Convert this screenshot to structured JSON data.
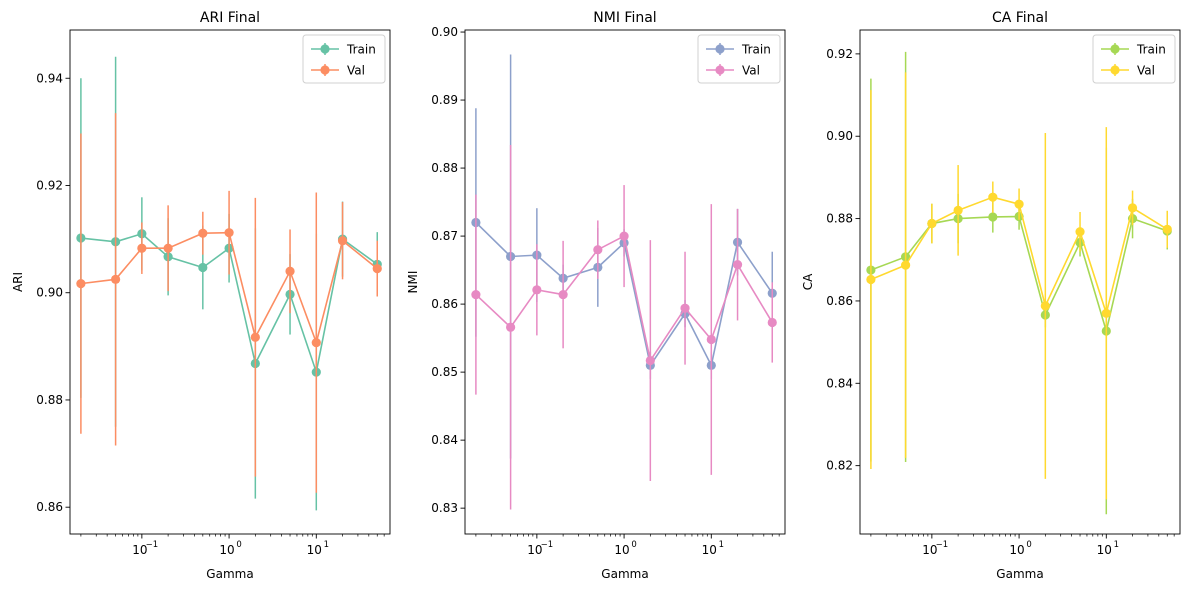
{
  "chart_data": [
    {
      "type": "line",
      "title": "ARI Final",
      "xlabel": "Gamma",
      "ylabel": "ARI",
      "xscale": "log",
      "xlim": [
        0.015,
        70
      ],
      "ylim": [
        0.855,
        0.949
      ],
      "yticks": [
        0.86,
        0.88,
        0.9,
        0.92,
        0.94
      ],
      "ytick_labels": [
        "0.86",
        "0.88",
        "0.90",
        "0.92",
        "0.94"
      ],
      "xticks": [
        0.1,
        1,
        10
      ],
      "xtick_labels": [
        [
          "10",
          "−1"
        ],
        [
          "10",
          "0"
        ],
        [
          "10",
          "1"
        ]
      ],
      "legend_position": "top-right",
      "x": [
        0.02,
        0.05,
        0.1,
        0.2,
        0.5,
        1,
        2,
        5,
        10,
        20,
        50
      ],
      "series": [
        {
          "name": "Train",
          "color": "#66c2a5",
          "values": [
            0.9102,
            0.9095,
            0.911,
            0.9067,
            0.9047,
            0.9083,
            0.8868,
            0.8997,
            0.8852,
            0.91,
            0.9053
          ],
          "errors": [
            0.0298,
            0.0345,
            0.0068,
            0.0072,
            0.0078,
            0.0064,
            0.0252,
            0.0075,
            0.0258,
            0.007,
            0.006
          ]
        },
        {
          "name": "Val",
          "color": "#fc8d62",
          "values": [
            0.9017,
            0.9025,
            0.9083,
            0.9083,
            0.9111,
            0.9112,
            0.8917,
            0.904,
            0.8907,
            0.9097,
            0.9045
          ],
          "errors": [
            0.028,
            0.031,
            0.0048,
            0.008,
            0.004,
            0.0078,
            0.026,
            0.0078,
            0.028,
            0.0072,
            0.0052
          ]
        }
      ]
    },
    {
      "type": "line",
      "title": "NMI Final",
      "xlabel": "Gamma",
      "ylabel": "NMI",
      "xscale": "log",
      "xlim": [
        0.015,
        70
      ],
      "ylim": [
        0.8262,
        0.9003
      ],
      "yticks": [
        0.83,
        0.84,
        0.85,
        0.86,
        0.87,
        0.88,
        0.89,
        0.9
      ],
      "ytick_labels": [
        "0.83",
        "0.84",
        "0.85",
        "0.86",
        "0.87",
        "0.88",
        "0.89",
        "0.90"
      ],
      "xticks": [
        0.1,
        1,
        10
      ],
      "xtick_labels": [
        [
          "10",
          "−1"
        ],
        [
          "10",
          "0"
        ],
        [
          "10",
          "1"
        ]
      ],
      "legend_position": "top-right",
      "x": [
        0.02,
        0.05,
        0.1,
        0.2,
        0.5,
        1,
        2,
        5,
        10,
        20,
        50
      ],
      "series": [
        {
          "name": "Train",
          "color": "#8da0cb",
          "values": [
            0.872,
            0.867,
            0.8672,
            0.8638,
            0.8654,
            0.869,
            0.851,
            0.8586,
            0.851,
            0.8691,
            0.8616
          ],
          "errors": [
            0.0168,
            0.0297,
            0.0069,
            0.002,
            0.0058,
            0.002,
            0.002,
            0.002,
            0.002,
            0.0049,
            0.0061
          ]
        },
        {
          "name": "Val",
          "color": "#e78ac3",
          "values": [
            0.8614,
            0.8566,
            0.8621,
            0.8614,
            0.868,
            0.87,
            0.8517,
            0.8594,
            0.8548,
            0.8658,
            0.8573
          ],
          "errors": [
            0.0147,
            0.0268,
            0.0067,
            0.0079,
            0.0043,
            0.0075,
            0.0177,
            0.0083,
            0.0199,
            0.0082,
            0.0059
          ]
        }
      ]
    },
    {
      "type": "line",
      "title": "CA Final",
      "xlabel": "Gamma",
      "ylabel": "CA",
      "xscale": "log",
      "xlim": [
        0.015,
        70
      ],
      "ylim": [
        0.8034,
        0.9258
      ],
      "yticks": [
        0.82,
        0.84,
        0.86,
        0.88,
        0.9,
        0.92
      ],
      "ytick_labels": [
        "0.82",
        "0.84",
        "0.86",
        "0.88",
        "0.90",
        "0.92"
      ],
      "xticks": [
        0.1,
        1,
        10
      ],
      "xtick_labels": [
        [
          "10",
          "−1"
        ],
        [
          "10",
          "0"
        ],
        [
          "10",
          "1"
        ]
      ],
      "legend_position": "top-right",
      "x": [
        0.02,
        0.05,
        0.1,
        0.2,
        0.5,
        1,
        2,
        5,
        10,
        20,
        50
      ],
      "series": [
        {
          "name": "Train",
          "color": "#a6d854",
          "values": [
            0.8675,
            0.8707,
            0.8788,
            0.88,
            0.8804,
            0.8805,
            0.8566,
            0.8742,
            0.8527,
            0.88,
            0.877
          ],
          "errors": [
            0.0465,
            0.0498,
            0.0048,
            0.006,
            0.0038,
            0.0032,
            0.003,
            0.0034,
            0.0445,
            0.0048,
            0.0045
          ]
        },
        {
          "name": "Val",
          "color": "#ffd92f",
          "values": [
            0.8652,
            0.8687,
            0.8788,
            0.882,
            0.8852,
            0.8835,
            0.8588,
            0.8768,
            0.857,
            0.8826,
            0.8774
          ],
          "errors": [
            0.046,
            0.0468,
            0.0048,
            0.011,
            0.0038,
            0.0038,
            0.042,
            0.0048,
            0.0452,
            0.0042,
            0.0045
          ]
        }
      ]
    }
  ]
}
